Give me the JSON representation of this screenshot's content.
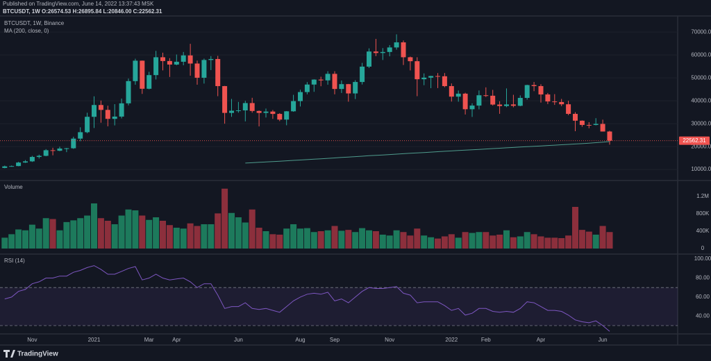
{
  "header": {
    "published": "Published on TradingView.com, June 14, 2022 13:37:43 MSK",
    "symbol_line": "BTCUSDT, 1W O:26574.53 H:26895.84 L:20846.00 C:22562.31",
    "brand": "TradingView"
  },
  "chart_data": [
    {
      "type": "candlestick",
      "title": "BTCUSDT, 1W, Binance",
      "up_color": "#26a69a",
      "down_color": "#ef5350",
      "categories": [
        null,
        null,
        null,
        null,
        "Nov",
        null,
        null,
        null,
        null,
        null,
        null,
        null,
        null,
        "2021",
        null,
        null,
        null,
        null,
        null,
        null,
        null,
        "Mar",
        null,
        null,
        null,
        "Apr",
        null,
        null,
        null,
        null,
        null,
        null,
        null,
        null,
        "Jun",
        null,
        null,
        null,
        null,
        null,
        null,
        null,
        null,
        "Aug",
        null,
        null,
        null,
        null,
        "Sep",
        null,
        null,
        null,
        null,
        null,
        null,
        null,
        "Nov",
        null,
        null,
        null,
        null,
        null,
        null,
        null,
        null,
        "2022",
        null,
        null,
        null,
        null,
        "Feb",
        null,
        null,
        null,
        null,
        null,
        null,
        null,
        "Apr",
        null,
        null,
        null,
        null,
        null,
        null,
        null,
        null,
        "Jun",
        null
      ],
      "open": [
        10670,
        11370,
        11500,
        13030,
        13550,
        15480,
        15960,
        18410,
        18180,
        19150,
        19270,
        23480,
        26280,
        33000,
        38150,
        36010,
        32100,
        33090,
        38880,
        48580,
        57500,
        45240,
        51200,
        59000,
        57350,
        55800,
        57030,
        59800,
        56250,
        50050,
        57800,
        58230,
        46400,
        34700,
        35660,
        35800,
        39000,
        35550,
        34700,
        35290,
        34260,
        31780,
        35400,
        39850,
        43800,
        47080,
        49250,
        48900,
        51750,
        45150,
        47260,
        43200,
        48200,
        54900,
        61500,
        60850,
        61300,
        63270,
        65500,
        59000,
        57270,
        49400,
        50100,
        50800,
        50700,
        46400,
        41800,
        43100,
        36300,
        37900,
        42400,
        42200,
        38350,
        37700,
        38400,
        37800,
        41250,
        46850,
        46400,
        42750,
        39700,
        39450,
        38470,
        34280,
        31300,
        29450,
        29440,
        29900,
        26574.53
      ],
      "high": [
        11700,
        11720,
        13350,
        14090,
        15960,
        16480,
        18900,
        19490,
        19920,
        19420,
        24300,
        28420,
        34780,
        41950,
        40100,
        37850,
        38530,
        40950,
        49700,
        58350,
        57570,
        52640,
        61780,
        61000,
        58600,
        60200,
        61300,
        64850,
        57550,
        58400,
        59500,
        59600,
        46500,
        40800,
        39500,
        40000,
        41300,
        35750,
        36600,
        35950,
        34600,
        35500,
        42600,
        44800,
        48150,
        49380,
        50500,
        52900,
        52900,
        48850,
        47350,
        49000,
        56550,
        62900,
        67000,
        63000,
        64300,
        69000,
        66300,
        59300,
        59000,
        51950,
        50900,
        52100,
        52100,
        47570,
        44480,
        43500,
        38900,
        44500,
        45850,
        44750,
        39800,
        45400,
        42600,
        42350,
        47000,
        48200,
        47200,
        43400,
        42900,
        40800,
        40000,
        35000,
        31450,
        30650,
        32400,
        31750,
        26895.84
      ],
      "low": [
        10530,
        11200,
        11400,
        12900,
        13290,
        14800,
        15780,
        16190,
        18000,
        17570,
        19000,
        22350,
        25800,
        28130,
        30420,
        28850,
        29240,
        32300,
        37990,
        47000,
        43000,
        45000,
        49300,
        53270,
        50400,
        55500,
        55500,
        50930,
        47000,
        47500,
        53400,
        42000,
        30000,
        33000,
        34800,
        31000,
        34800,
        28800,
        32700,
        32100,
        31100,
        29300,
        35200,
        37500,
        42800,
        43900,
        46350,
        47000,
        42800,
        43400,
        39600,
        40750,
        47100,
        54300,
        59500,
        57800,
        59400,
        62300,
        55600,
        53250,
        42000,
        46800,
        45500,
        45550,
        45900,
        39650,
        39600,
        34000,
        32950,
        36250,
        41650,
        37900,
        34300,
        37200,
        37150,
        37600,
        40500,
        44200,
        39200,
        38550,
        38200,
        37650,
        33700,
        26700,
        28650,
        28000,
        29250,
        26560,
        20846
      ],
      "close": [
        11370,
        11500,
        13030,
        13550,
        15480,
        15960,
        18410,
        18180,
        19150,
        19270,
        23480,
        26280,
        33000,
        38150,
        36010,
        32100,
        33090,
        38880,
        48580,
        57500,
        45240,
        51200,
        59000,
        57350,
        55800,
        57030,
        59800,
        56250,
        50050,
        57800,
        58230,
        46400,
        34700,
        35660,
        35800,
        39000,
        35550,
        34700,
        35290,
        34260,
        31780,
        35400,
        39850,
        43800,
        47080,
        49250,
        48900,
        51750,
        45150,
        47260,
        43200,
        48200,
        54900,
        61500,
        60850,
        61300,
        63270,
        65500,
        59000,
        57270,
        49400,
        50100,
        50800,
        50700,
        46400,
        41800,
        43100,
        36300,
        37900,
        42400,
        42200,
        38350,
        37700,
        38400,
        37800,
        41250,
        46850,
        46400,
        42750,
        39700,
        39450,
        38470,
        34280,
        31300,
        29450,
        29440,
        29900,
        26574.53,
        22562.31
      ],
      "ma": {
        "name": "MA (200, close, 0)",
        "color": "#4f9c8d",
        "values": [
          null,
          null,
          null,
          null,
          null,
          null,
          null,
          null,
          null,
          null,
          null,
          null,
          null,
          null,
          null,
          null,
          null,
          null,
          null,
          null,
          null,
          null,
          null,
          null,
          null,
          null,
          null,
          null,
          null,
          null,
          null,
          null,
          null,
          null,
          null,
          12800,
          12960,
          13130,
          13300,
          13460,
          13630,
          13800,
          13970,
          14140,
          14320,
          14500,
          14680,
          14860,
          15050,
          15240,
          15430,
          15620,
          15810,
          16000,
          16180,
          16360,
          16530,
          16700,
          16880,
          17060,
          17240,
          17420,
          17600,
          17770,
          17940,
          18110,
          18280,
          18450,
          18610,
          18780,
          18950,
          19120,
          19290,
          19460,
          19620,
          19790,
          19960,
          20130,
          20300,
          20460,
          20620,
          20790,
          20960,
          21130,
          21300,
          21500,
          21720,
          21950,
          22200
        ]
      },
      "ylim": [
        5800,
        75500
      ],
      "yticks": [
        {
          "value": 10000,
          "label": "10000.00"
        },
        {
          "value": 20000,
          "label": "20000.00"
        },
        {
          "value": 30000,
          "label": "30000.00"
        },
        {
          "value": 40000,
          "label": "40000.00"
        },
        {
          "value": 50000,
          "label": "50000.00"
        },
        {
          "value": 60000,
          "label": "60000.00"
        },
        {
          "value": 70000,
          "label": "70000.00"
        }
      ],
      "grid": true
    },
    {
      "type": "bar",
      "title": "Volume",
      "up_color": "#1d7a5c",
      "down_color": "#8c2f3c",
      "values": [
        250000,
        330000,
        440000,
        420000,
        550000,
        460000,
        700000,
        680000,
        420000,
        610000,
        650000,
        700000,
        760000,
        1040000,
        700000,
        640000,
        560000,
        760000,
        900000,
        880000,
        760000,
        660000,
        720000,
        640000,
        540000,
        480000,
        460000,
        580000,
        520000,
        560000,
        560000,
        810000,
        1380000,
        820000,
        720000,
        600000,
        900000,
        480000,
        400000,
        330000,
        320000,
        460000,
        560000,
        460000,
        470000,
        380000,
        400000,
        420000,
        520000,
        410000,
        430000,
        380000,
        470000,
        420000,
        400000,
        320000,
        300000,
        420000,
        380000,
        300000,
        460000,
        300000,
        260000,
        230000,
        280000,
        330000,
        250000,
        380000,
        360000,
        380000,
        380000,
        300000,
        320000,
        420000,
        260000,
        280000,
        380000,
        330000,
        280000,
        250000,
        250000,
        240000,
        300000,
        960000,
        430000,
        390000,
        320000,
        520000,
        380000
      ],
      "ylim": [
        -112000,
        1536000
      ],
      "yticks": [
        0,
        {
          "value": 400000,
          "label": "400K"
        },
        {
          "value": 800000,
          "label": "800K"
        },
        {
          "value": 1200000,
          "label": "1.2M"
        }
      ],
      "grid": false
    },
    {
      "type": "line",
      "title": "RSI (14)",
      "color": "#7e57c2",
      "band_color": "#7e57c2",
      "values": [
        58,
        60,
        66,
        68,
        74,
        76,
        80,
        80,
        82,
        82,
        86,
        88,
        91,
        93,
        89,
        84,
        84,
        87,
        90,
        92,
        78,
        80,
        84,
        80,
        78,
        79,
        80,
        76,
        70,
        74,
        74,
        62,
        48,
        50,
        50,
        54,
        48,
        47,
        48,
        46,
        44,
        50,
        56,
        60,
        63,
        64,
        63,
        65,
        56,
        58,
        54,
        60,
        66,
        70,
        69,
        69,
        70,
        71,
        64,
        62,
        54,
        55,
        55,
        55,
        51,
        46,
        48,
        41,
        43,
        48,
        48,
        45,
        44,
        45,
        44,
        48,
        55,
        54,
        50,
        46,
        46,
        45,
        41,
        36,
        34,
        33,
        35,
        30,
        24
      ],
      "bands": [
        30,
        70
      ],
      "ylim": [
        22,
        104.4
      ],
      "yticks": [
        {
          "value": 40,
          "label": "40.00"
        },
        {
          "value": 60,
          "label": "60.00"
        },
        {
          "value": 80,
          "label": "80.00"
        },
        {
          "value": 100,
          "label": "100.00"
        }
      ],
      "grid": false
    }
  ]
}
